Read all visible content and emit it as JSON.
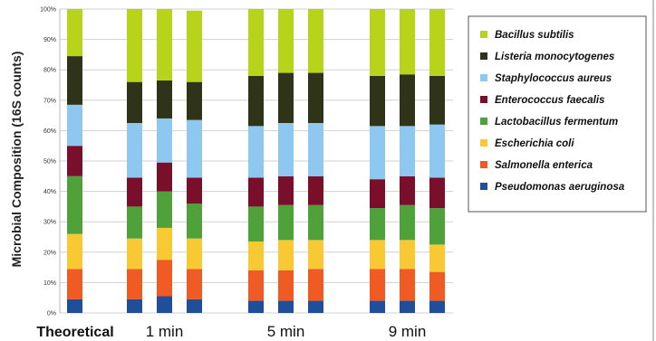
{
  "chart_data": {
    "type": "bar",
    "stacked": true,
    "percent": true,
    "ylabel": "Microbial Composition (16S counts)",
    "ylim": [
      0,
      100
    ],
    "yticks": [
      0,
      10,
      20,
      30,
      40,
      50,
      60,
      70,
      80,
      90,
      100
    ],
    "ytick_labels": [
      "0%",
      "10%",
      "20%",
      "30%",
      "40%",
      "50%",
      "60%",
      "70%",
      "80%",
      "90%",
      "100%"
    ],
    "grid": true,
    "legend_position": "right",
    "groups": [
      {
        "label": "Theoretical",
        "bars": 1
      },
      {
        "label": "1 min",
        "bars": 3
      },
      {
        "label": "5 min",
        "bars": 3
      },
      {
        "label": "9 min",
        "bars": 3
      }
    ],
    "series": [
      {
        "name": "Pseudomonas aeruginosa",
        "color": "#1f4e9b",
        "values": [
          4.5,
          4.5,
          5.5,
          4.5,
          4,
          4,
          4,
          4,
          4,
          4
        ]
      },
      {
        "name": "Salmonella enterica",
        "color": "#f05a23",
        "values": [
          10,
          10,
          12,
          10,
          10,
          10,
          10.5,
          10.5,
          10.5,
          9.5
        ]
      },
      {
        "name": "Escherichia coli",
        "color": "#f9c933",
        "values": [
          11.5,
          10,
          10.5,
          10,
          9.5,
          10,
          9.5,
          9.5,
          9.5,
          9
        ]
      },
      {
        "name": "Lactobacillus fermentum",
        "color": "#4fa13a",
        "values": [
          19,
          10.5,
          12,
          11.5,
          11.5,
          11.5,
          11.5,
          10.5,
          11.5,
          12
        ]
      },
      {
        "name": "Enterococcus faecalis",
        "color": "#7a0f2c",
        "values": [
          10,
          9.5,
          9.5,
          8.5,
          9.5,
          9.5,
          9.5,
          9.5,
          9.5,
          10
        ]
      },
      {
        "name": "Staphylococcus aureus",
        "color": "#8ec7f0",
        "values": [
          13.5,
          18,
          14.5,
          19,
          17,
          17.5,
          17.5,
          17.5,
          16.5,
          17.5
        ]
      },
      {
        "name": "Listeria monocytogenes",
        "color": "#2f3418",
        "values": [
          16,
          13.5,
          12.5,
          12.5,
          16.5,
          16.5,
          16.5,
          16.5,
          17,
          16
        ]
      },
      {
        "name": "Bacillus subtilis",
        "color": "#b7d31a",
        "values": [
          15.5,
          24,
          23.5,
          23.5,
          22,
          21,
          21,
          22,
          21.5,
          22
        ]
      }
    ]
  }
}
